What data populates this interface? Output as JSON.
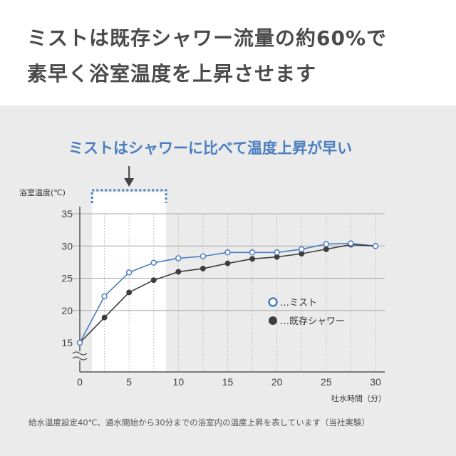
{
  "headline": {
    "line1": "ミストは既存シャワー流量の約60%で",
    "line2": "素早く浴室温度を上昇させます"
  },
  "callout": "ミストはシャワーに比べて温度上昇が早い",
  "footnote": "給水温度設定40℃、通水開始から30分までの浴室内の温度上昇を表しています（当社実験）",
  "colors": {
    "mist": "#4a7ec0",
    "shower": "#3e3e3e",
    "callout": "#4a7ec0",
    "highlight_band": "#ffffff"
  },
  "chart_data": {
    "type": "line",
    "ylabel": "浴室温度(℃)",
    "xlabel": "吐水時間（分）",
    "xlim": [
      0,
      30
    ],
    "ylim": [
      15,
      35
    ],
    "y_axis_break": true,
    "x_ticks": [
      0,
      5,
      10,
      15,
      20,
      25,
      30
    ],
    "y_ticks": [
      15,
      20,
      25,
      30,
      35
    ],
    "grid": "vertical dotted every 2.5 min; horizontal solid at labeled ticks",
    "highlight_range": [
      1.25,
      8.75
    ],
    "legend_position": "right",
    "x": [
      0,
      2.5,
      5,
      7.5,
      10,
      12.5,
      15,
      17.5,
      20,
      22.5,
      25,
      27.5,
      30
    ],
    "series": [
      {
        "name": "…ミスト",
        "marker": "hollow-circle",
        "values": [
          15,
          22.2,
          25.9,
          27.4,
          28.1,
          28.4,
          29.0,
          29.0,
          29.0,
          29.5,
          30.3,
          30.4,
          30.0
        ]
      },
      {
        "name": "…既存シャワー",
        "marker": "filled-circle",
        "values": [
          15,
          18.9,
          22.8,
          24.7,
          26.0,
          26.5,
          27.3,
          28.0,
          28.3,
          28.8,
          29.5,
          30.2,
          30.0
        ]
      }
    ]
  }
}
